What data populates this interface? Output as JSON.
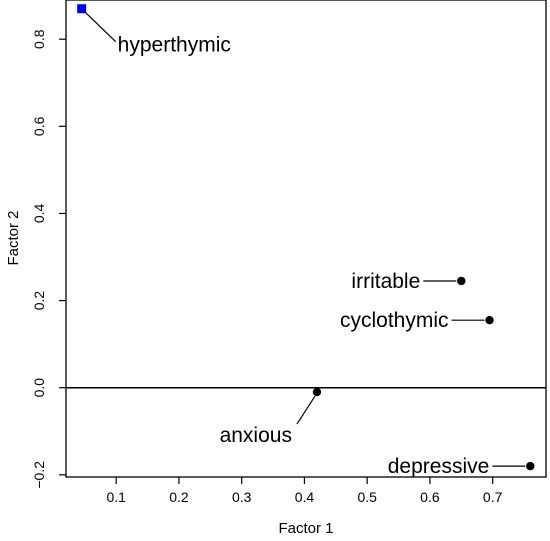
{
  "chart_data": {
    "type": "scatter",
    "xlabel": "Factor 1",
    "ylabel": "Factor 2",
    "xlim": [
      0.02,
      0.785
    ],
    "ylim": [
      -0.205,
      0.89
    ],
    "x_ticks": [
      {
        "value": 0.1,
        "label": "0.1"
      },
      {
        "value": 0.2,
        "label": "0.2"
      },
      {
        "value": 0.3,
        "label": "0.3"
      },
      {
        "value": 0.4,
        "label": "0.4"
      },
      {
        "value": 0.5,
        "label": "0.5"
      },
      {
        "value": 0.6,
        "label": "0.6"
      },
      {
        "value": 0.7,
        "label": "0.7"
      }
    ],
    "y_ticks": [
      {
        "value": -0.2,
        "label": "−0.2"
      },
      {
        "value": 0.0,
        "label": "0.0"
      },
      {
        "value": 0.2,
        "label": "0.2"
      },
      {
        "value": 0.4,
        "label": "0.4"
      },
      {
        "value": 0.6,
        "label": "0.6"
      },
      {
        "value": 0.8,
        "label": "0.8"
      }
    ],
    "reference_line_y": 0.0,
    "points": [
      {
        "label": "hyperthymic",
        "x": 0.045,
        "y": 0.87,
        "marker": "square",
        "color": "#0000ff",
        "label_side": "right"
      },
      {
        "label": "irritable",
        "x": 0.65,
        "y": 0.245,
        "marker": "circle",
        "color": "#000000",
        "label_side": "left"
      },
      {
        "label": "cyclothymic",
        "x": 0.695,
        "y": 0.155,
        "marker": "circle",
        "color": "#000000",
        "label_side": "left"
      },
      {
        "label": "anxious",
        "x": 0.42,
        "y": -0.01,
        "marker": "circle",
        "color": "#000000",
        "label_side": "below-left"
      },
      {
        "label": "depressive",
        "x": 0.76,
        "y": -0.18,
        "marker": "circle",
        "color": "#000000",
        "label_side": "left"
      }
    ]
  }
}
